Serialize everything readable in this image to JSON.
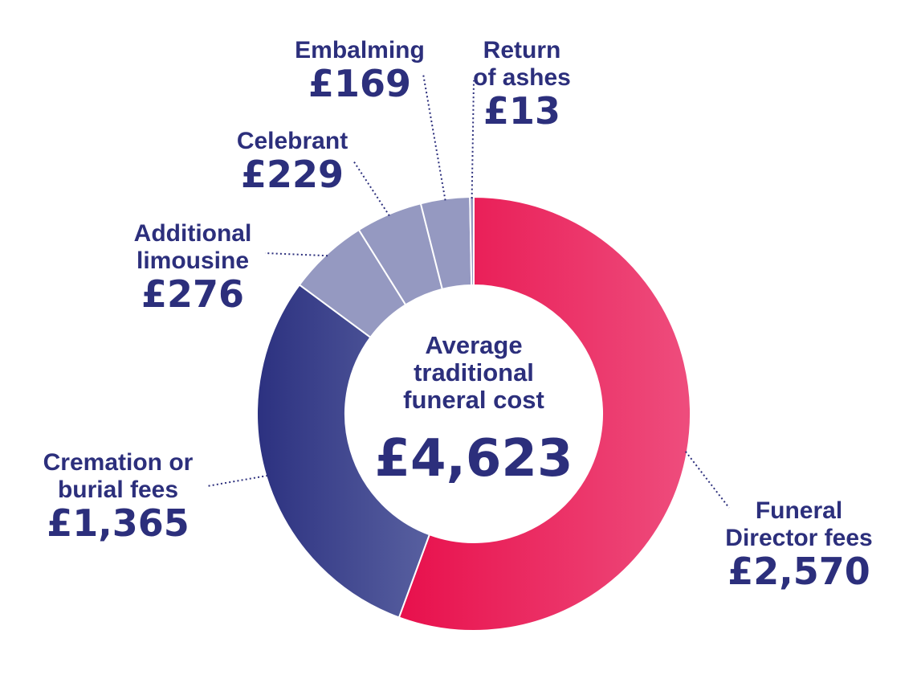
{
  "chart_data": {
    "type": "pie",
    "variant": "donut",
    "center": {
      "title_lines": [
        "Average",
        "traditional",
        "funeral cost"
      ],
      "total_label": "£4,623",
      "total": 4623
    },
    "slices": [
      {
        "key": "funeral-director-fees",
        "label_lines": [
          "Funeral",
          "Director fees"
        ],
        "value": 2570,
        "value_label": "£2,570",
        "color": "#e8104c",
        "color_end": "#ee4d7d"
      },
      {
        "key": "cremation-or-burial-fees",
        "label_lines": [
          "Cremation or",
          "burial fees"
        ],
        "value": 1365,
        "value_label": "£1,365",
        "color": "#2c3180",
        "color_end": "#5860a0"
      },
      {
        "key": "additional-limousine",
        "label_lines": [
          "Additional",
          "limousine"
        ],
        "value": 276,
        "value_label": "£276",
        "color": "#9599c1"
      },
      {
        "key": "celebrant",
        "label_lines": [
          "Celebrant"
        ],
        "value": 229,
        "value_label": "£229",
        "color": "#9599c1"
      },
      {
        "key": "embalming",
        "label_lines": [
          "Embalming"
        ],
        "value": 169,
        "value_label": "£169",
        "color": "#9599c1"
      },
      {
        "key": "return-of-ashes",
        "label_lines": [
          "Return",
          "of ashes"
        ],
        "value": 13,
        "value_label": "£13",
        "color": "#9599c1"
      }
    ],
    "text_color": "#2c2f7c"
  }
}
